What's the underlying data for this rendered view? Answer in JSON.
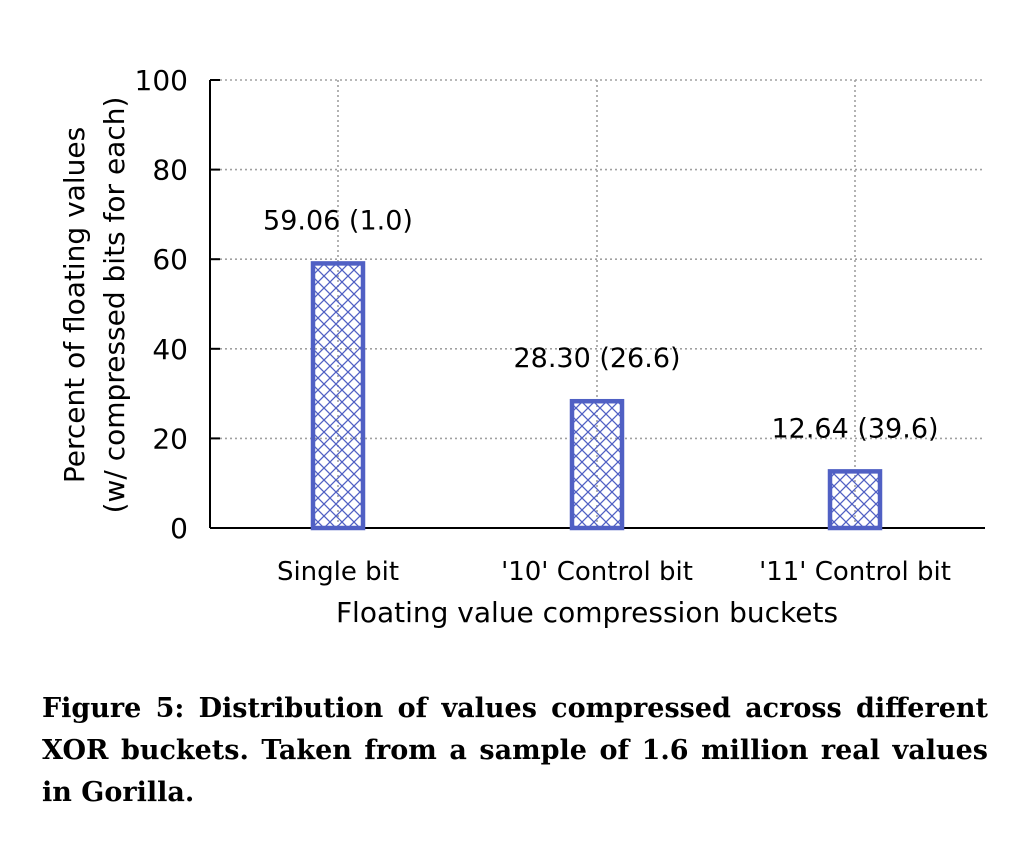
{
  "chart_data": {
    "type": "bar",
    "categories": [
      "Single bit",
      "'10' Control bit",
      "'11' Control bit"
    ],
    "values": [
      59.06,
      28.3,
      12.64
    ],
    "data_labels": [
      "59.06 (1.0)",
      "28.30 (26.6)",
      "12.64 (39.6)"
    ],
    "xlabel": "Floating value compression buckets",
    "ylabel": [
      "Percent of floating values",
      "(w/ compressed bits for each)"
    ],
    "ylim": [
      0,
      100
    ],
    "yticks": [
      0,
      20,
      40,
      60,
      80,
      100
    ],
    "grid": true,
    "bar_style": "cross-hatched",
    "colors": {
      "bar_stroke": "#5060c4",
      "bar_hatch": "#5060c4",
      "grid": "#a0a0a0",
      "axis": "#000000"
    }
  },
  "caption": {
    "text": "Figure 5: Distribution of values compressed across different XOR buckets. Taken from a sample of 1.6 million real values in Gorilla."
  }
}
